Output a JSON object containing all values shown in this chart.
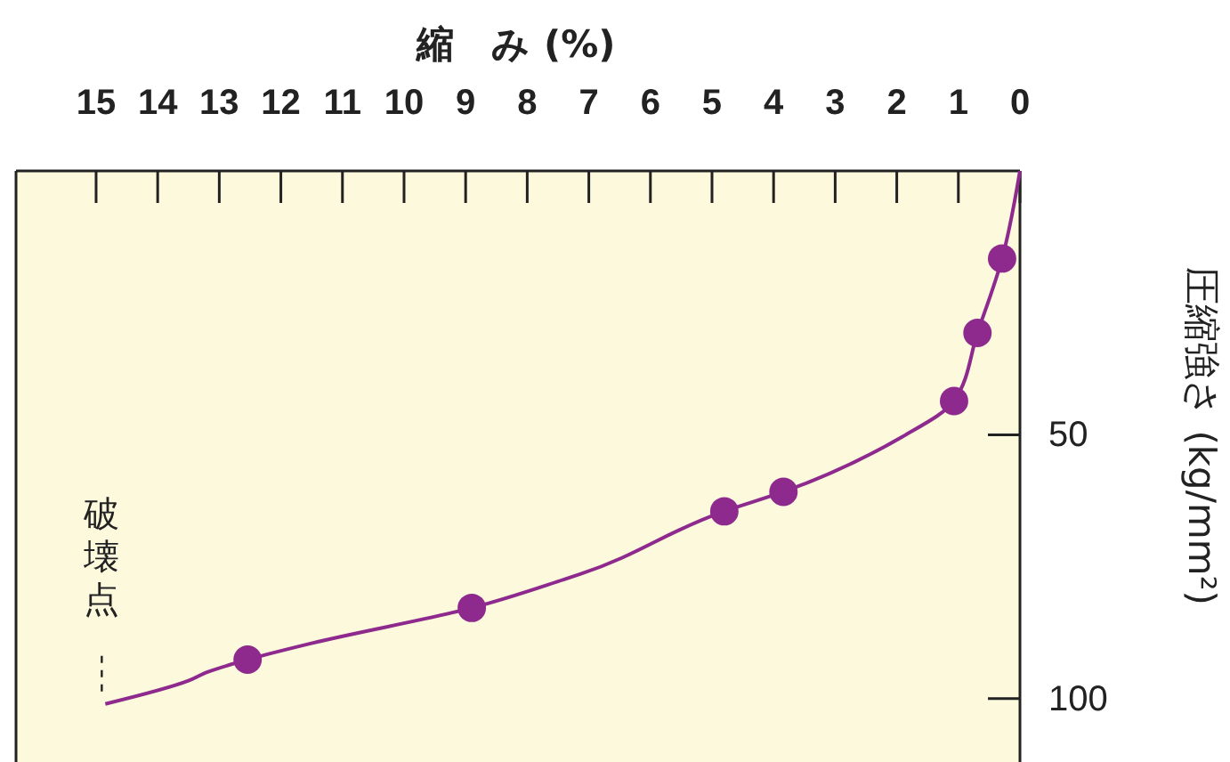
{
  "chart_data": {
    "type": "line",
    "xlabel": "縮　み (%)",
    "ylabel": "圧縮強さ (kg/mm²)",
    "xlim": [
      16.3,
      0
    ],
    "xticks": [
      15,
      14,
      13,
      12,
      11,
      10,
      9,
      8,
      7,
      6,
      5,
      4,
      3,
      2,
      1,
      0
    ],
    "ylim": [
      112,
      0
    ],
    "yticks": [
      50,
      100
    ],
    "grid": false,
    "series": [
      {
        "color": "#8e2a8e",
        "marker": "none",
        "x": [
          0,
          0.29,
          0.69,
          1.07,
          1.9,
          3.84,
          4.8,
          7.14,
          7.4,
          8.9,
          11.5,
          12.54,
          13.2,
          13.5,
          14.85
        ],
        "values": [
          0,
          16.6,
          30.7,
          43.6,
          50.3,
          60.8,
          64.5,
          76.4,
          77.4,
          82.8,
          89.5,
          92.6,
          95,
          96.6,
          101
        ]
      },
      {
        "type": "scatter",
        "color": "#8e2a8e",
        "marker": "circle",
        "x": [
          0.29,
          0.69,
          1.07,
          3.84,
          4.8,
          8.9,
          12.54
        ],
        "values": [
          16.6,
          30.7,
          43.6,
          60.8,
          64.5,
          82.8,
          92.6
        ]
      }
    ],
    "annotations": [
      {
        "text": "破壊点",
        "x": 14.85,
        "y": 101
      }
    ]
  }
}
